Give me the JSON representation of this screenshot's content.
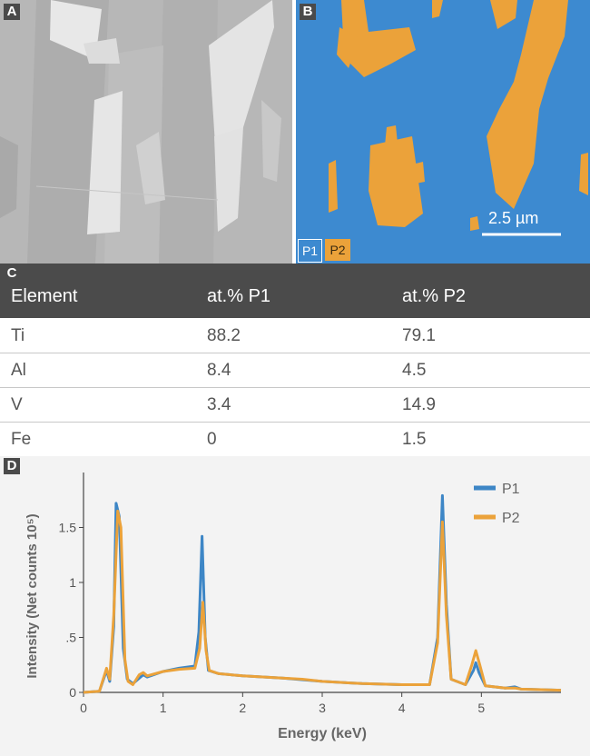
{
  "panels": {
    "a_letter": "A",
    "b_letter": "B",
    "c_letter": "C",
    "d_letter": "D"
  },
  "phase_map": {
    "scale_label": "2.5 µm",
    "legend": [
      {
        "label": "P1",
        "color": "#3d8ad0"
      },
      {
        "label": "P2",
        "color": "#eba23a"
      }
    ]
  },
  "table": {
    "headers": [
      "Element",
      "at.% P1",
      "at.% P2"
    ],
    "rows": [
      [
        "Ti",
        "88.2",
        "79.1"
      ],
      [
        "Al",
        "8.4",
        "4.5"
      ],
      [
        "V",
        "3.4",
        "14.9"
      ],
      [
        "Fe",
        "0",
        "1.5"
      ]
    ]
  },
  "chart_data": {
    "type": "line",
    "xlabel": "Energy (keV)",
    "ylabel": "Intensity (Net counts 10⁵)",
    "xlim": [
      0,
      6
    ],
    "ylim": [
      0,
      2
    ],
    "x_ticks": [
      0,
      1,
      2,
      3,
      4,
      5
    ],
    "y_ticks": [
      {
        "value": 0,
        "label": "0"
      },
      {
        "value": 0.5,
        "label": ".5"
      },
      {
        "value": 1,
        "label": "1"
      },
      {
        "value": 1.5,
        "label": "1.5"
      }
    ],
    "legend_position": "top-right",
    "series": [
      {
        "name": "P1",
        "color": "#3d86c6",
        "points": [
          [
            0,
            0
          ],
          [
            0.2,
            0.01
          ],
          [
            0.29,
            0.2
          ],
          [
            0.33,
            0.1
          ],
          [
            0.38,
            0.6
          ],
          [
            0.41,
            1.72
          ],
          [
            0.45,
            1.6
          ],
          [
            0.5,
            0.4
          ],
          [
            0.55,
            0.12
          ],
          [
            0.62,
            0.08
          ],
          [
            0.7,
            0.13
          ],
          [
            0.75,
            0.16
          ],
          [
            0.8,
            0.14
          ],
          [
            1.0,
            0.19
          ],
          [
            1.2,
            0.22
          ],
          [
            1.4,
            0.24
          ],
          [
            1.45,
            0.55
          ],
          [
            1.49,
            1.42
          ],
          [
            1.53,
            0.5
          ],
          [
            1.57,
            0.2
          ],
          [
            1.7,
            0.17
          ],
          [
            2.0,
            0.15
          ],
          [
            2.5,
            0.13
          ],
          [
            3.0,
            0.1
          ],
          [
            3.5,
            0.08
          ],
          [
            4.0,
            0.07
          ],
          [
            4.35,
            0.07
          ],
          [
            4.45,
            0.5
          ],
          [
            4.51,
            1.79
          ],
          [
            4.56,
            0.8
          ],
          [
            4.62,
            0.12
          ],
          [
            4.8,
            0.07
          ],
          [
            4.9,
            0.2
          ],
          [
            4.93,
            0.27
          ],
          [
            4.97,
            0.18
          ],
          [
            5.05,
            0.06
          ],
          [
            5.3,
            0.04
          ],
          [
            5.42,
            0.05
          ],
          [
            5.5,
            0.03
          ],
          [
            6.0,
            0.02
          ]
        ]
      },
      {
        "name": "P2",
        "color": "#eba23a",
        "points": [
          [
            0,
            0
          ],
          [
            0.2,
            0.01
          ],
          [
            0.29,
            0.22
          ],
          [
            0.33,
            0.12
          ],
          [
            0.38,
            0.7
          ],
          [
            0.43,
            1.65
          ],
          [
            0.47,
            1.5
          ],
          [
            0.52,
            0.3
          ],
          [
            0.56,
            0.1
          ],
          [
            0.62,
            0.07
          ],
          [
            0.7,
            0.16
          ],
          [
            0.75,
            0.18
          ],
          [
            0.8,
            0.15
          ],
          [
            1.0,
            0.19
          ],
          [
            1.2,
            0.21
          ],
          [
            1.4,
            0.22
          ],
          [
            1.46,
            0.4
          ],
          [
            1.5,
            0.82
          ],
          [
            1.54,
            0.38
          ],
          [
            1.58,
            0.2
          ],
          [
            1.7,
            0.17
          ],
          [
            2.0,
            0.15
          ],
          [
            2.5,
            0.13
          ],
          [
            2.75,
            0.12
          ],
          [
            3.0,
            0.1
          ],
          [
            3.5,
            0.08
          ],
          [
            4.0,
            0.07
          ],
          [
            4.35,
            0.07
          ],
          [
            4.45,
            0.45
          ],
          [
            4.51,
            1.55
          ],
          [
            4.56,
            0.7
          ],
          [
            4.62,
            0.12
          ],
          [
            4.8,
            0.07
          ],
          [
            4.88,
            0.25
          ],
          [
            4.93,
            0.38
          ],
          [
            4.98,
            0.25
          ],
          [
            5.05,
            0.06
          ],
          [
            5.3,
            0.04
          ],
          [
            5.42,
            0.04
          ],
          [
            5.5,
            0.03
          ],
          [
            6.0,
            0.02
          ]
        ]
      }
    ]
  }
}
